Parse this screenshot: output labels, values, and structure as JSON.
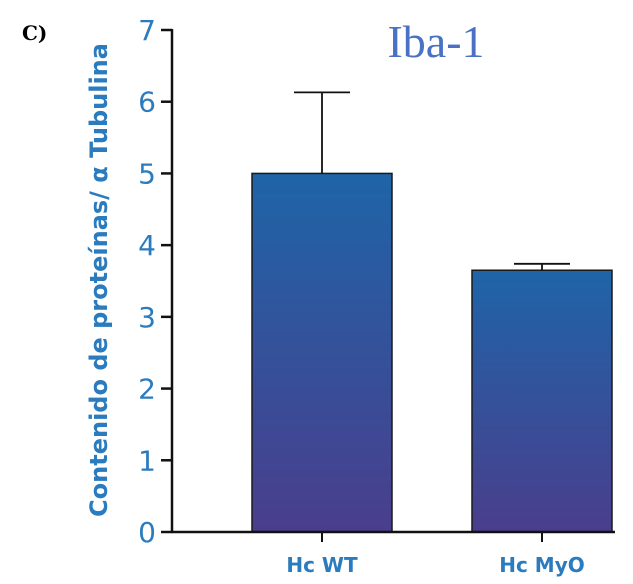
{
  "panel_label": "C)",
  "colors": {
    "axis": "#2b7bbf",
    "title": "#4a72c4",
    "bar_top": "#1f64a8",
    "bar_bottom": "#4a3e8c",
    "error_bar": "#111111",
    "panel_label": "#000000"
  },
  "chart_data": {
    "type": "bar",
    "title": "Iba-1",
    "xlabel": "",
    "ylabel": "Contenido de proteínas/ α Tubulina",
    "categories": [
      "Hc WT",
      "Hc MyO"
    ],
    "values": [
      5.0,
      3.65
    ],
    "error_upper": [
      6.13,
      3.74
    ],
    "ylim": [
      0,
      7
    ],
    "yticks": [
      0,
      1,
      2,
      3,
      4,
      5,
      6,
      7
    ],
    "grid": false,
    "legend": "none"
  }
}
